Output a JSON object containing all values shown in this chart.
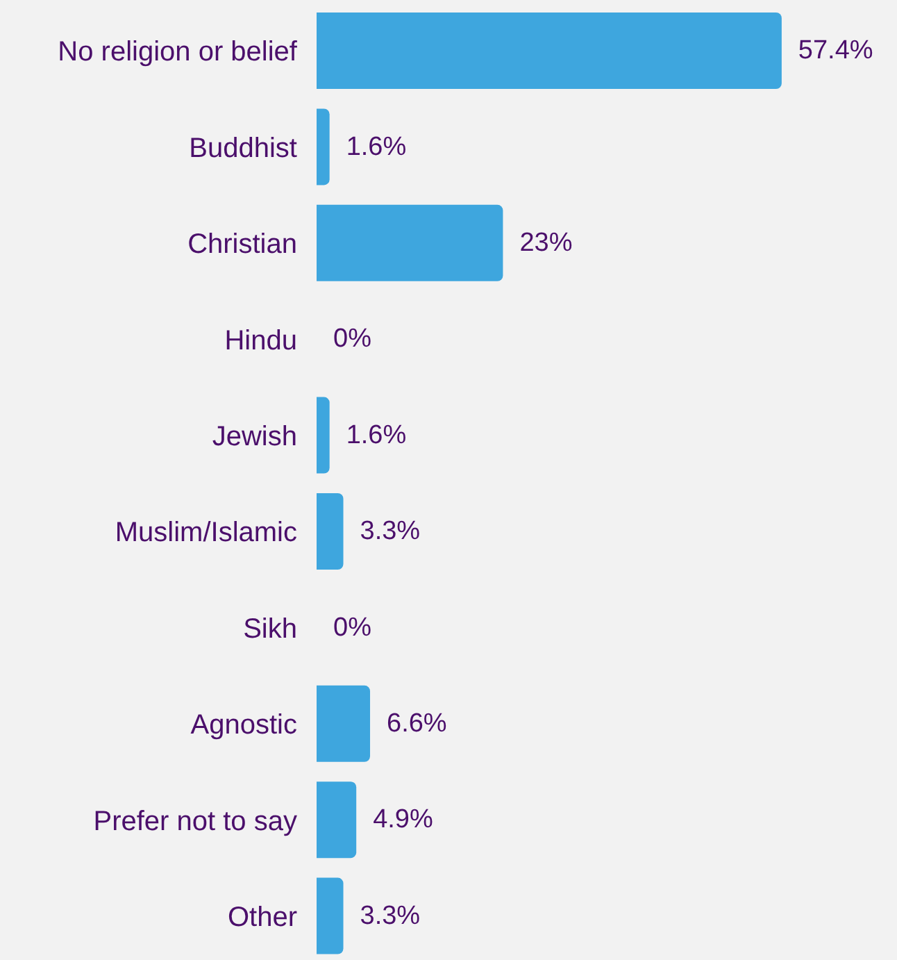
{
  "chart_data": {
    "type": "bar",
    "orientation": "horizontal",
    "categories": [
      "No religion or belief",
      "Buddhist",
      "Christian",
      "Hindu",
      "Jewish",
      "Muslim/Islamic",
      "Sikh",
      "Agnostic",
      "Prefer not to say",
      "Other"
    ],
    "values": [
      57.4,
      1.6,
      23,
      0,
      1.6,
      3.3,
      0,
      6.6,
      4.9,
      3.3
    ],
    "value_labels": [
      "57.4%",
      "1.6%",
      "23%",
      "0%",
      "1.6%",
      "3.3%",
      "0%",
      "6.6%",
      "4.9%",
      "3.3%"
    ],
    "color": "#3ea6de",
    "grid": false,
    "legend": false
  }
}
